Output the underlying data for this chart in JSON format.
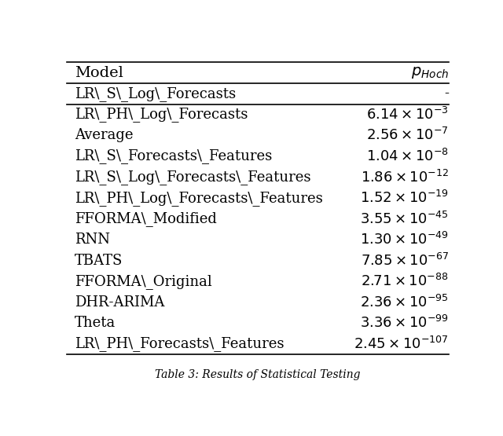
{
  "header": [
    "Model",
    "$p_{Hoch}$"
  ],
  "rows": [
    [
      "LR\\_S\\_Log\\_Forecasts",
      "-"
    ],
    [
      "LR\\_PH\\_Log\\_Forecasts",
      "$6.14 \\times 10^{-3}$"
    ],
    [
      "Average",
      "$2.56 \\times 10^{-7}$"
    ],
    [
      "LR\\_S\\_Forecasts\\_Features",
      "$1.04 \\times 10^{-8}$"
    ],
    [
      "LR\\_S\\_Log\\_Forecasts\\_Features",
      "$1.86 \\times 10^{-12}$"
    ],
    [
      "LR\\_PH\\_Log\\_Forecasts\\_Features",
      "$1.52 \\times 10^{-19}$"
    ],
    [
      "FFORMA\\_Modified",
      "$3.55 \\times 10^{-45}$"
    ],
    [
      "RNN",
      "$1.30 \\times 10^{-49}$"
    ],
    [
      "TBATS",
      "$7.85 \\times 10^{-67}$"
    ],
    [
      "FFORMA\\_Original",
      "$2.71 \\times 10^{-88}$"
    ],
    [
      "DHR-ARIMA",
      "$2.36 \\times 10^{-95}$"
    ],
    [
      "Theta",
      "$3.36 \\times 10^{-99}$"
    ],
    [
      "LR\\_PH\\_Forecasts\\_Features",
      "$2.45 \\times 10^{-107}$"
    ]
  ],
  "separator_after_row": 0,
  "bg_color": "#ffffff",
  "text_color": "#000000",
  "font_size": 13,
  "header_font_size": 14,
  "caption": "Table 3: Results of Statistical Testing"
}
